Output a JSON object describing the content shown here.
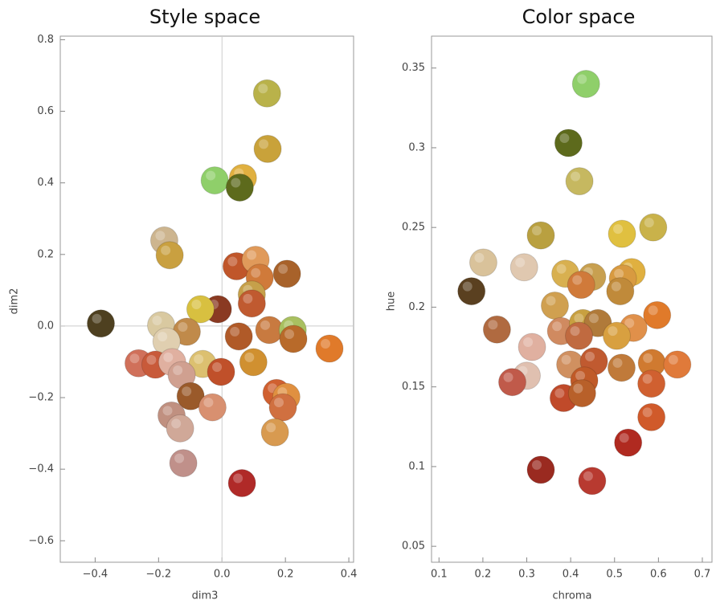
{
  "chart_data": [
    {
      "type": "scatter",
      "title": "Style space",
      "x_label": "dim3",
      "y_label": "dim2",
      "xlim": [
        -0.51,
        0.415
      ],
      "ylim": [
        -0.66,
        0.81
      ],
      "xticks": [
        {
          "value": -0.4,
          "label": "−0.4"
        },
        {
          "value": -0.2,
          "label": "−0.2"
        },
        {
          "value": 0,
          "label": "0.0"
        },
        0.2,
        0.4
      ],
      "yticks": [
        {
          "value": -0.6,
          "label": "−0.6"
        },
        {
          "value": -0.4,
          "label": "−0.4"
        },
        {
          "value": -0.2,
          "label": "−0.2"
        },
        {
          "value": 0,
          "label": "0.0"
        },
        0.2,
        0.4,
        0.6,
        0.8
      ],
      "origin_lines": true,
      "x": [
        0.142,
        0.144,
        -0.023,
        0.066,
        0.056,
        -0.182,
        -0.165,
        0.046,
        0.106,
        0.205,
        0.119,
        0.094,
        0.094,
        -0.013,
        -0.068,
        -0.382,
        -0.192,
        -0.111,
        -0.175,
        0.149,
        0.223,
        0.225,
        0.053,
        0.339,
        -0.263,
        -0.21,
        -0.157,
        -0.061,
        0.099,
        -0.127,
        -0.003,
        -0.099,
        -0.03,
        -0.159,
        -0.132,
        0.172,
        0.203,
        0.192,
        0.167,
        -0.122,
        0.063
      ],
      "values": [
        0.65,
        0.495,
        0.407,
        0.414,
        0.387,
        0.239,
        0.198,
        0.167,
        0.185,
        0.146,
        0.135,
        0.088,
        0.063,
        0.047,
        0.047,
        0.007,
        0.002,
        -0.016,
        -0.043,
        -0.011,
        -0.011,
        -0.036,
        -0.029,
        -0.063,
        -0.104,
        -0.108,
        -0.101,
        -0.106,
        -0.101,
        -0.137,
        -0.128,
        -0.196,
        -0.227,
        -0.25,
        -0.286,
        -0.187,
        -0.198,
        -0.227,
        -0.297,
        -0.383,
        -0.439
      ],
      "colors": [
        "#b9b24a",
        "#c9a23a",
        "#8fcf6a",
        "#e0b040",
        "#5d6a1c",
        "#cdb58f",
        "#c9a040",
        "#c0562a",
        "#e09a5a",
        "#a8622a",
        "#d07a3a",
        "#c6a04a",
        "#c05a30",
        "#8a3a22",
        "#d8c040",
        "#4e4020",
        "#d9c9a0",
        "#c08a4a",
        "#e0cfb0",
        "#c87a40",
        "#a9c060",
        "#b86a2a",
        "#b05a28",
        "#e07a2a",
        "#d0705a",
        "#c85a3a",
        "#e0b0a0",
        "#dcc070",
        "#d09030",
        "#d0a090",
        "#c0502a",
        "#9a5a2a",
        "#d89070",
        "#c09080",
        "#d0a898",
        "#d06030",
        "#e09040",
        "#d07040",
        "#d89a50",
        "#c0908a",
        "#b02a28"
      ]
    },
    {
      "type": "scatter",
      "title": "Color space",
      "x_label": "chroma",
      "y_label": "hue",
      "xlim": [
        0.083,
        0.722
      ],
      "ylim": [
        0.04,
        0.37
      ],
      "xticks": [
        0.1,
        0.2,
        0.3,
        0.4,
        0.5,
        0.6,
        0.7
      ],
      "yticks": [
        0.05,
        0.1,
        0.15,
        0.2,
        0.25,
        0.3,
        0.35
      ],
      "origin_lines": false,
      "x": [
        0.435,
        0.395,
        0.42,
        0.588,
        0.517,
        0.332,
        0.201,
        0.294,
        0.388,
        0.449,
        0.539,
        0.519,
        0.424,
        0.513,
        0.174,
        0.364,
        0.597,
        0.232,
        0.378,
        0.428,
        0.462,
        0.543,
        0.505,
        0.419,
        0.312,
        0.399,
        0.453,
        0.516,
        0.585,
        0.643,
        0.431,
        0.3,
        0.267,
        0.584,
        0.384,
        0.426,
        0.584,
        0.531,
        0.332,
        0.449
      ],
      "values": [
        0.34,
        0.303,
        0.279,
        0.25,
        0.246,
        0.245,
        0.228,
        0.225,
        0.221,
        0.219,
        0.222,
        0.218,
        0.214,
        0.21,
        0.21,
        0.201,
        0.195,
        0.186,
        0.185,
        0.19,
        0.19,
        0.187,
        0.182,
        0.182,
        0.175,
        0.164,
        0.166,
        0.162,
        0.165,
        0.164,
        0.154,
        0.157,
        0.153,
        0.152,
        0.143,
        0.146,
        0.131,
        0.115,
        0.098,
        0.091
      ],
      "colors": [
        "#8fcf6a",
        "#5d6a1c",
        "#c6b860",
        "#c9b24a",
        "#e0c040",
        "#b9a040",
        "#d9c29a",
        "#e0c8b0",
        "#d8b050",
        "#c8a050",
        "#e0b040",
        "#d89a40",
        "#d07a3a",
        "#c08a3a",
        "#5a4020",
        "#d0a050",
        "#e07a2a",
        "#b06a40",
        "#d08a60",
        "#c8a040",
        "#b07a3a",
        "#e0904a",
        "#d8a040",
        "#c06a40",
        "#e0b0a0",
        "#d09060",
        "#c05a30",
        "#c07a3a",
        "#d07a30",
        "#e07a3a",
        "#c05a28",
        "#e0c0b0",
        "#c05a4a",
        "#d06030",
        "#c04a2a",
        "#b8602a",
        "#d05a2a",
        "#b02a20",
        "#9a2a20",
        "#b83a30"
      ]
    }
  ]
}
